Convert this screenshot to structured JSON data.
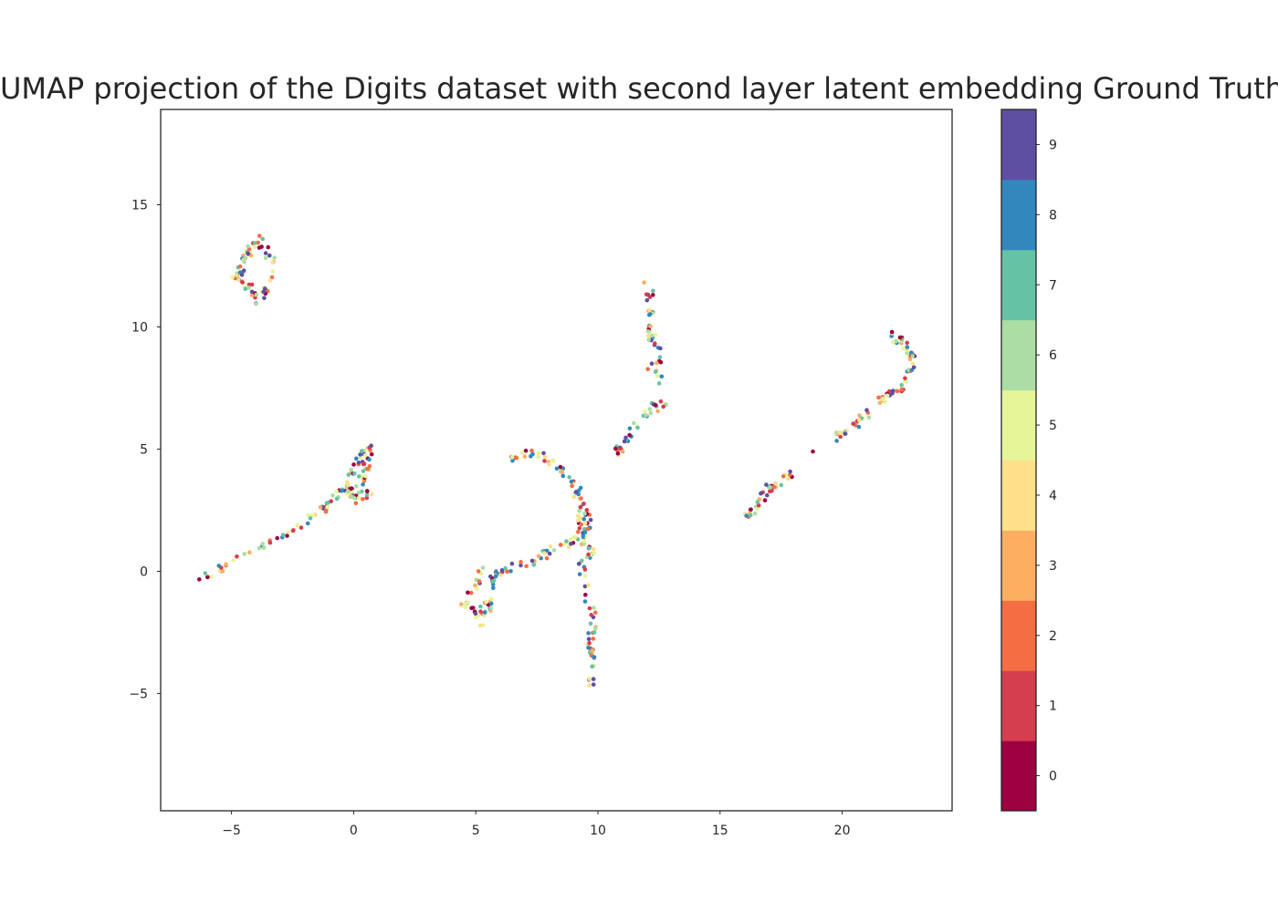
{
  "chart_data": {
    "type": "scatter",
    "title": "UMAP projection of the Digits dataset with second layer latent embedding Ground Truth",
    "xlabel": "",
    "ylabel": "",
    "xlim": [
      -7.9,
      24.5
    ],
    "ylim": [
      -9.8,
      18.9
    ],
    "x_ticks": [
      -5,
      0,
      5,
      10,
      15,
      20
    ],
    "y_ticks": [
      -5,
      0,
      5,
      10,
      15
    ],
    "grid": false,
    "colormap": "Spectral",
    "colorbar": {
      "labels": [
        "0",
        "1",
        "2",
        "3",
        "4",
        "5",
        "6",
        "7",
        "8",
        "9"
      ],
      "colors": [
        "#9e0142",
        "#d53e4f",
        "#f46d43",
        "#fdae61",
        "#fee08b",
        "#e6f598",
        "#abdda4",
        "#66c2a5",
        "#3288bd",
        "#5e4fa2"
      ]
    },
    "clusters": [
      {
        "path": [
          [
            -4.0,
            13.8
          ],
          [
            -3.6,
            13.2
          ],
          [
            -3.2,
            12.4
          ],
          [
            -3.5,
            11.6
          ],
          [
            -3.9,
            11.0
          ],
          [
            -4.2,
            11.5
          ],
          [
            -4.8,
            12.1
          ],
          [
            -4.5,
            12.8
          ],
          [
            -4.0,
            13.4
          ]
        ],
        "n": 70,
        "labels": [
          0,
          1,
          2,
          3,
          4,
          5,
          6,
          7,
          8,
          9
        ]
      },
      {
        "path": [
          [
            -6.2,
            -0.3
          ],
          [
            -4.5,
            0.6
          ],
          [
            -3.0,
            1.4
          ],
          [
            -2.0,
            1.9
          ],
          [
            -1.0,
            2.8
          ],
          [
            -0.2,
            3.4
          ],
          [
            0.5,
            3.1
          ],
          [
            0.9,
            3.1
          ]
        ],
        "n": 70,
        "labels": [
          0,
          1,
          2,
          3,
          4,
          5,
          6,
          7,
          8,
          9
        ]
      },
      {
        "path": [
          [
            0.0,
            2.8
          ],
          [
            -0.2,
            3.6
          ],
          [
            0.0,
            4.3
          ],
          [
            0.4,
            4.9
          ],
          [
            0.6,
            5.0
          ],
          [
            0.5,
            4.2
          ],
          [
            0.2,
            3.0
          ]
        ],
        "n": 55,
        "labels": [
          0,
          1,
          2,
          3,
          4,
          5,
          6,
          7,
          8,
          9
        ]
      },
      {
        "path": [
          [
            5.3,
            -2.1
          ],
          [
            5.0,
            -1.4
          ],
          [
            4.5,
            -1.3
          ],
          [
            5.0,
            -0.6
          ],
          [
            5.3,
            0.1
          ],
          [
            5.8,
            -0.2
          ],
          [
            5.6,
            -1.0
          ],
          [
            5.5,
            -1.8
          ]
        ],
        "n": 55,
        "labels": [
          0,
          1,
          2,
          3,
          4,
          5,
          6,
          7,
          8,
          9
        ]
      },
      {
        "path": [
          [
            6.0,
            0.0
          ],
          [
            7.2,
            0.4
          ],
          [
            8.2,
            0.9
          ],
          [
            9.0,
            1.2
          ],
          [
            9.4,
            1.8
          ],
          [
            9.3,
            2.6
          ],
          [
            9.1,
            3.5
          ],
          [
            8.4,
            4.2
          ],
          [
            7.6,
            4.8
          ],
          [
            6.8,
            4.8
          ],
          [
            6.5,
            4.5
          ]
        ],
        "n": 90,
        "labels": [
          0,
          1,
          2,
          3,
          4,
          5,
          6,
          7,
          8,
          9
        ]
      },
      {
        "path": [
          [
            9.3,
            3.0
          ],
          [
            9.6,
            2.2
          ],
          [
            9.5,
            1.2
          ],
          [
            9.8,
            0.7
          ],
          [
            9.3,
            0.2
          ],
          [
            9.5,
            -1.0
          ],
          [
            9.8,
            -1.8
          ],
          [
            9.7,
            -3.0
          ],
          [
            9.7,
            -4.7
          ]
        ],
        "n": 75,
        "labels": [
          0,
          1,
          2,
          3,
          4,
          5,
          6,
          7,
          8,
          9
        ]
      },
      {
        "path": [
          [
            10.7,
            4.6
          ],
          [
            11.2,
            5.4
          ],
          [
            11.7,
            6.2
          ],
          [
            12.2,
            6.6
          ],
          [
            12.7,
            7.0
          ]
        ],
        "n": 35,
        "labels": [
          0,
          1,
          2,
          3,
          4,
          5,
          6,
          7,
          8,
          9
        ]
      },
      {
        "path": [
          [
            12.0,
            12.0
          ],
          [
            12.2,
            11.0
          ],
          [
            12.1,
            10.2
          ],
          [
            12.3,
            9.3
          ],
          [
            12.6,
            8.7
          ],
          [
            12.1,
            8.5
          ],
          [
            12.6,
            7.8
          ],
          [
            12.4,
            7.6
          ]
        ],
        "n": 45,
        "labels": [
          0,
          1,
          2,
          3,
          4,
          5,
          6,
          7,
          8,
          9
        ]
      },
      {
        "path": [
          [
            16.1,
            2.2
          ],
          [
            16.5,
            2.6
          ],
          [
            17.0,
            3.4
          ],
          [
            17.6,
            3.7
          ],
          [
            18.0,
            4.0
          ]
        ],
        "n": 35,
        "labels": [
          0,
          1,
          2,
          3,
          4,
          5,
          6,
          7,
          8,
          9
        ]
      },
      {
        "path": [
          [
            19.6,
            5.4
          ],
          [
            20.3,
            5.9
          ],
          [
            20.9,
            6.3
          ],
          [
            21.5,
            6.9
          ],
          [
            22.0,
            7.3
          ],
          [
            22.5,
            7.6
          ],
          [
            22.6,
            8.1
          ],
          [
            22.9,
            8.5
          ],
          [
            22.7,
            9.1
          ],
          [
            22.3,
            9.5
          ],
          [
            21.9,
            9.8
          ]
        ],
        "n": 80,
        "labels": [
          0,
          1,
          2,
          3,
          4,
          5,
          6,
          7,
          8,
          9
        ]
      },
      {
        "path": [
          [
            18.8,
            4.9
          ]
        ],
        "n": 1,
        "labels": [
          0
        ]
      }
    ]
  }
}
